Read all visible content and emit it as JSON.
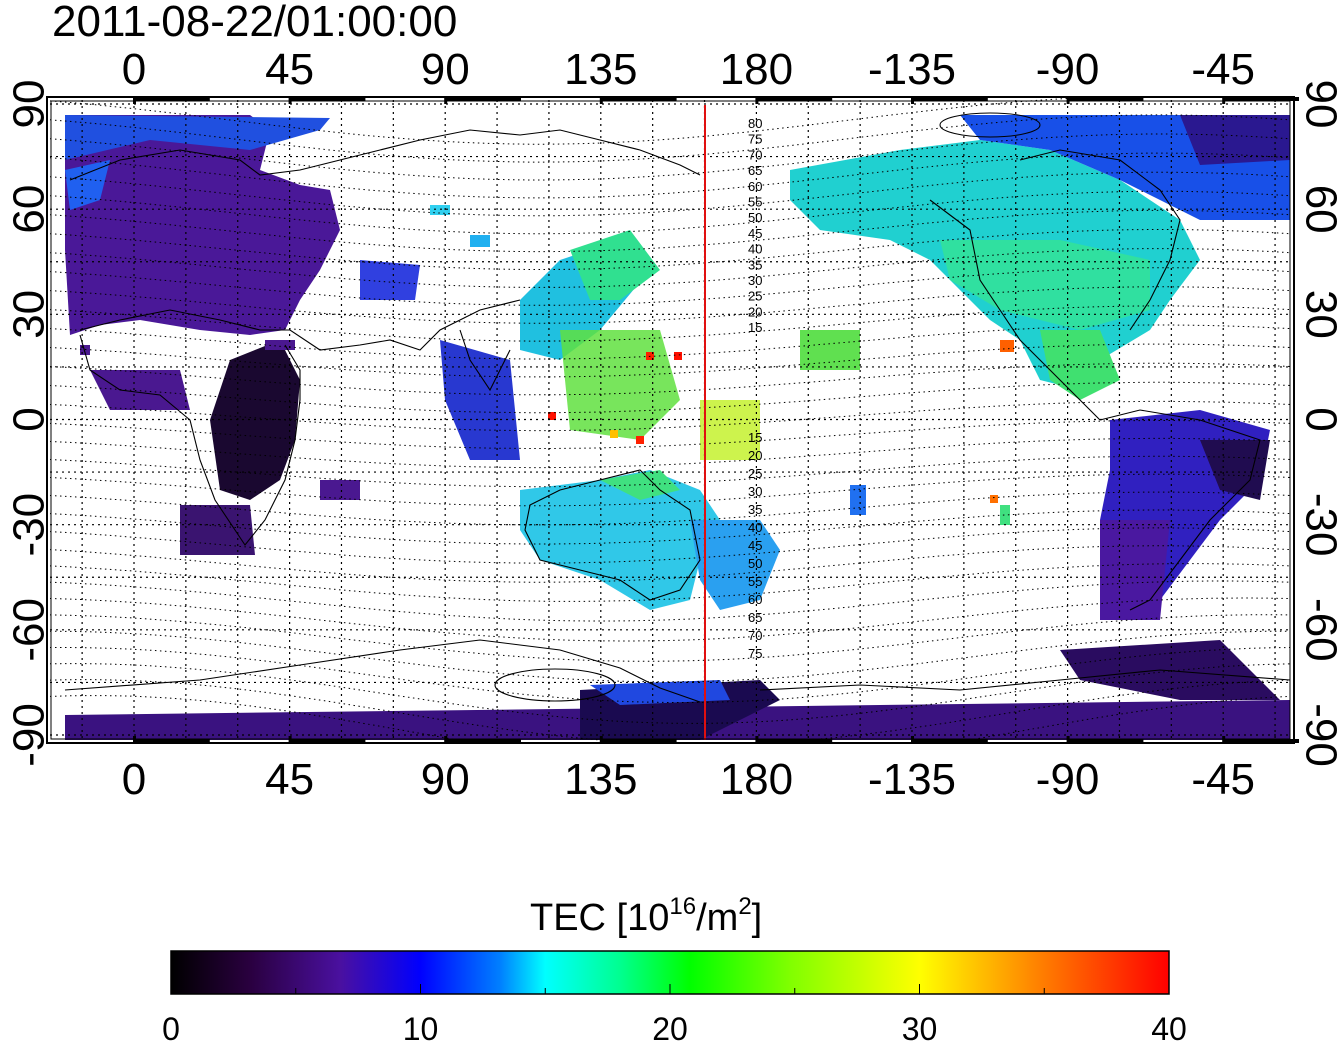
{
  "title": "2011-08-22/01:00:00",
  "map": {
    "lon_ticks": [
      "0",
      "45",
      "90",
      "135",
      "180",
      "-135",
      "-90",
      "-45"
    ],
    "lat_ticks": [
      "90",
      "60",
      "30",
      "0",
      "-30",
      "-60",
      "-90"
    ],
    "terminator_color": "#e01010",
    "contour_labels_north": [
      "80",
      "75",
      "70",
      "65",
      "60",
      "55",
      "50",
      "45",
      "40",
      "35",
      "30",
      "25",
      "20",
      "15"
    ],
    "contour_labels_south": [
      "15",
      "20",
      "25",
      "30",
      "35",
      "40",
      "45",
      "50",
      "55",
      "60",
      "65",
      "70",
      "75"
    ]
  },
  "colorbar": {
    "label_main": "TEC  [10",
    "label_sup": "16",
    "label_unit": "/m",
    "label_sup2": "2",
    "label_close": "]",
    "ticks": [
      "0",
      "10",
      "20",
      "30",
      "40"
    ],
    "min": 0,
    "max": 40,
    "colormap": [
      "#000000",
      "#3a0058",
      "#4a10b0",
      "#0000ff",
      "#0080ff",
      "#00ffff",
      "#00ff80",
      "#00ff00",
      "#80ff00",
      "#ffff00",
      "#ff8000",
      "#ff0000"
    ]
  }
}
